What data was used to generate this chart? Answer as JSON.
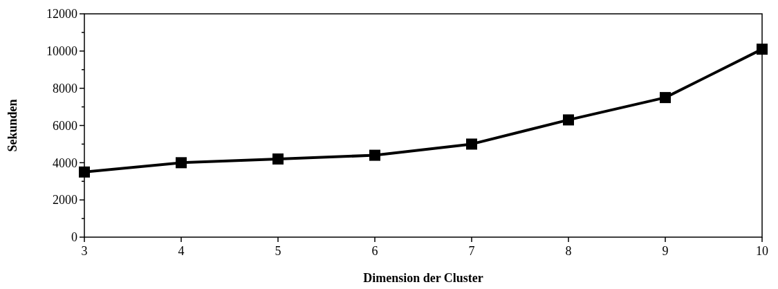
{
  "chart_data": {
    "type": "line",
    "xlabel": "Dimension der Cluster",
    "ylabel": "Sekunden",
    "x": [
      3,
      4,
      5,
      6,
      7,
      8,
      9,
      10
    ],
    "series": [
      {
        "color": "#000000",
        "values": [
          3500,
          4000,
          4200,
          4400,
          5000,
          6300,
          7500,
          10100
        ]
      }
    ],
    "xlim": [
      3,
      10
    ],
    "xticks": [
      3,
      4,
      5,
      6,
      7,
      8,
      9,
      10
    ],
    "ylim": [
      0,
      12000
    ],
    "yticks": [
      0,
      {
        "value": 1000,
        "label": null
      },
      2000,
      {
        "value": 3000,
        "label": null
      },
      4000,
      {
        "value": 5000,
        "label": null
      },
      6000,
      {
        "value": 7000,
        "label": null
      },
      8000,
      {
        "value": 9000,
        "label": null
      },
      10000,
      {
        "value": 11000,
        "label": null
      },
      12000
    ],
    "grid": false,
    "marker": "square",
    "line_style": "solid"
  }
}
